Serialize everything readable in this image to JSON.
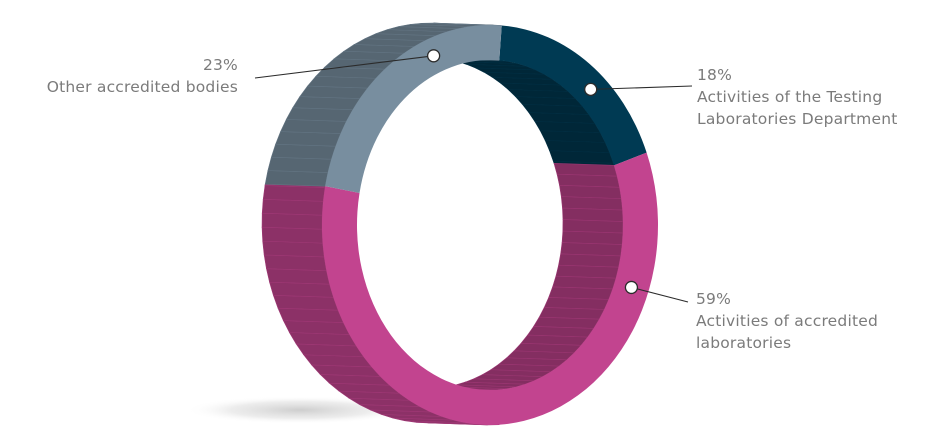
{
  "chart_data": {
    "type": "pie",
    "style": "3d-ring",
    "title": "",
    "legend": "none",
    "slices": [
      {
        "percent": 18,
        "value_label": "18%",
        "label_lines": [
          "Activities of the Testing",
          "Laboratories Department"
        ],
        "color": "#003a53"
      },
      {
        "percent": 59,
        "value_label": "59%",
        "label_lines": [
          "Activities of accredited",
          "laboratories"
        ],
        "color": "#c2448f"
      },
      {
        "percent": 23,
        "value_label": "23%",
        "label_lines": [
          "Other accredited bodies"
        ],
        "color": "#788e9f"
      }
    ]
  }
}
